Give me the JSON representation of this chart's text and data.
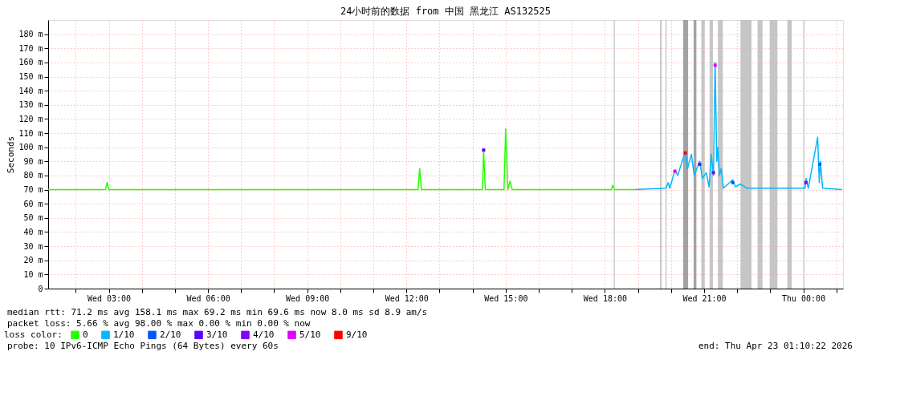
{
  "chart_data": {
    "type": "line",
    "title": "24小时前的数据 from 中国 黑龙江 AS132525",
    "ylabel": "Seconds",
    "xlim": [
      "2026-04-22T01:10",
      "2026-04-23T01:12"
    ],
    "ylim": [
      0,
      190
    ],
    "xticks": [
      {
        "value": "2026-04-22T02:00",
        "label": null
      },
      {
        "value": "2026-04-22T03:00",
        "label": "Wed 03:00"
      },
      {
        "value": "2026-04-22T04:00",
        "label": null
      },
      {
        "value": "2026-04-22T05:00",
        "label": null
      },
      {
        "value": "2026-04-22T06:00",
        "label": "Wed 06:00"
      },
      {
        "value": "2026-04-22T07:00",
        "label": null
      },
      {
        "value": "2026-04-22T08:00",
        "label": null
      },
      {
        "value": "2026-04-22T09:00",
        "label": "Wed 09:00"
      },
      {
        "value": "2026-04-22T10:00",
        "label": null
      },
      {
        "value": "2026-04-22T11:00",
        "label": null
      },
      {
        "value": "2026-04-22T12:00",
        "label": "Wed 12:00"
      },
      {
        "value": "2026-04-22T13:00",
        "label": null
      },
      {
        "value": "2026-04-22T14:00",
        "label": null
      },
      {
        "value": "2026-04-22T15:00",
        "label": "Wed 15:00"
      },
      {
        "value": "2026-04-22T16:00",
        "label": null
      },
      {
        "value": "2026-04-22T17:00",
        "label": null
      },
      {
        "value": "2026-04-22T18:00",
        "label": "Wed 18:00"
      },
      {
        "value": "2026-04-22T19:00",
        "label": null
      },
      {
        "value": "2026-04-22T20:00",
        "label": null
      },
      {
        "value": "2026-04-22T21:00",
        "label": "Wed 21:00"
      },
      {
        "value": "2026-04-22T22:00",
        "label": null
      },
      {
        "value": "2026-04-22T23:00",
        "label": null
      },
      {
        "value": "2026-04-23T00:00",
        "label": "Thu 00:00"
      },
      {
        "value": "2026-04-23T01:00",
        "label": null
      }
    ],
    "yticks": [
      0,
      {
        "value": 10,
        "label": "10 m"
      },
      {
        "value": 20,
        "label": "20 m"
      },
      {
        "value": 30,
        "label": "30 m"
      },
      {
        "value": 40,
        "label": "40 m"
      },
      {
        "value": 50,
        "label": "50 m"
      },
      {
        "value": 60,
        "label": "60 m"
      },
      {
        "value": 70,
        "label": "70 m"
      },
      {
        "value": 80,
        "label": "80 m"
      },
      {
        "value": 90,
        "label": "90 m"
      },
      {
        "value": 100,
        "label": "100 m"
      },
      {
        "value": 110,
        "label": "110 m"
      },
      {
        "value": 120,
        "label": "120 m"
      },
      {
        "value": 130,
        "label": "130 m"
      },
      {
        "value": 140,
        "label": "140 m"
      },
      {
        "value": 150,
        "label": "150 m"
      },
      {
        "value": 160,
        "label": "160 m"
      },
      {
        "value": 170,
        "label": "170 m"
      },
      {
        "value": 180,
        "label": "180 m"
      }
    ],
    "grid": true,
    "legend": "bottom",
    "legend_title": "loss color:",
    "series": [
      {
        "name": "0",
        "color": "#26ff00",
        "x": [
          "2026-04-22T01:10",
          "2026-04-22T02:54",
          "2026-04-22T02:57",
          "2026-04-22T03:00",
          "2026-04-22T12:21",
          "2026-04-22T12:24",
          "2026-04-22T12:27",
          "2026-04-22T14:18",
          "2026-04-22T14:20",
          "2026-04-22T14:23",
          "2026-04-22T14:57",
          "2026-04-22T15:00",
          "2026-04-22T15:04",
          "2026-04-22T15:08",
          "2026-04-22T15:12",
          "2026-04-22T18:12",
          "2026-04-22T18:14",
          "2026-04-22T18:18",
          "2026-04-22T18:54"
        ],
        "values": [
          70,
          70,
          75,
          70,
          70,
          85,
          70,
          70,
          98,
          70,
          70,
          113,
          70,
          76,
          70,
          70,
          73,
          70,
          70
        ]
      },
      {
        "name": "1/10",
        "color": "#00b8ff",
        "x": [
          "2026-04-22T18:54",
          "2026-04-22T19:51",
          "2026-04-22T19:55",
          "2026-04-22T19:58",
          "2026-04-22T20:07",
          "2026-04-22T20:12",
          "2026-04-22T20:26",
          "2026-04-22T20:30",
          "2026-04-22T20:37",
          "2026-04-22T20:42",
          "2026-04-22T20:52",
          "2026-04-22T20:57",
          "2026-04-22T21:04",
          "2026-04-22T21:09",
          "2026-04-22T21:13",
          "2026-04-22T21:17",
          "2026-04-22T21:20",
          "2026-04-22T21:23",
          "2026-04-22T21:25",
          "2026-04-22T21:28",
          "2026-04-22T21:31",
          "2026-04-22T21:35",
          "2026-04-22T21:52",
          "2026-04-22T21:57",
          "2026-04-22T22:06",
          "2026-04-22T22:18",
          "2026-04-23T00:03",
          "2026-04-23T00:05",
          "2026-04-23T00:09",
          "2026-04-23T00:26",
          "2026-04-23T00:29",
          "2026-04-23T00:31",
          "2026-04-23T00:35",
          "2026-04-23T01:10"
        ],
        "values": [
          70,
          71,
          75,
          71,
          84,
          80,
          97,
          85,
          95,
          80,
          90,
          78,
          82,
          72,
          95,
          80,
          160,
          90,
          100,
          80,
          85,
          71,
          77,
          72,
          74,
          71,
          71,
          78,
          71,
          107,
          75,
          90,
          71,
          70
        ]
      },
      {
        "name": "2/10",
        "color": "#0059ff",
        "type": "scatter",
        "x": [
          "2026-04-22T21:52",
          "2026-04-23T00:30"
        ],
        "values": [
          75,
          88
        ]
      },
      {
        "name": "3/10",
        "color": "#5e00ff",
        "type": "scatter",
        "x": [
          "2026-04-22T14:20",
          "2026-04-22T20:52"
        ],
        "values": [
          98,
          88
        ]
      },
      {
        "name": "4/10",
        "color": "#7e00ff",
        "type": "scatter",
        "x": [
          "2026-04-22T21:17",
          "2026-04-23T00:05"
        ],
        "values": [
          82,
          75
        ]
      },
      {
        "name": "5/10",
        "color": "#dd00ff",
        "type": "scatter",
        "x": [
          "2026-04-22T21:20",
          "2026-04-22T20:07"
        ],
        "values": [
          158,
          83
        ]
      },
      {
        "name": "9/10",
        "color": "#ff0000",
        "type": "scatter",
        "x": [
          "2026-04-22T20:26"
        ],
        "values": [
          96
        ]
      }
    ],
    "bands": [
      {
        "axis": "x",
        "from": "2026-04-22T18:16",
        "to": "2026-04-22T18:18",
        "color": "#c0c0c0"
      },
      {
        "axis": "x",
        "from": "2026-04-22T19:40",
        "to": "2026-04-22T19:43",
        "color": "#c0c0c0"
      },
      {
        "axis": "x",
        "from": "2026-04-22T19:50",
        "to": "2026-04-22T19:52",
        "color": "#c0c0c0"
      },
      {
        "axis": "x",
        "from": "2026-04-22T20:22",
        "to": "2026-04-22T20:31",
        "color": "#999999"
      },
      {
        "axis": "x",
        "from": "2026-04-22T20:41",
        "to": "2026-04-22T20:46",
        "color": "#999999"
      },
      {
        "axis": "x",
        "from": "2026-04-22T20:55",
        "to": "2026-04-22T21:01",
        "color": "#c0c0c0"
      },
      {
        "axis": "x",
        "from": "2026-04-22T21:10",
        "to": "2026-04-22T21:16",
        "color": "#c0c0c0"
      },
      {
        "axis": "x",
        "from": "2026-04-22T21:25",
        "to": "2026-04-22T21:34",
        "color": "#c0c0c0"
      },
      {
        "axis": "x",
        "from": "2026-04-22T22:06",
        "to": "2026-04-22T22:26",
        "color": "#c0c0c0"
      },
      {
        "axis": "x",
        "from": "2026-04-22T22:37",
        "to": "2026-04-22T22:46",
        "color": "#c0c0c0"
      },
      {
        "axis": "x",
        "from": "2026-04-22T22:59",
        "to": "2026-04-22T23:13",
        "color": "#c0c0c0"
      },
      {
        "axis": "x",
        "from": "2026-04-22T23:31",
        "to": "2026-04-22T23:39",
        "color": "#c0c0c0"
      },
      {
        "axis": "x",
        "from": "2026-04-23T00:00",
        "to": "2026-04-23T00:02",
        "color": "#c0c0c0"
      }
    ],
    "annotations": [
      "median rtt:  71.2 ms avg  158.1 ms max  69.2 ms min  69.6 ms now  8.0 ms sd  8.9   am/s",
      "packet loss: 5.66 % avg  98.00 % max  0.00 % min  0.00 % now",
      "probe:       10 IPv6-ICMP Echo Pings (64 Bytes) every 60s",
      "end: Thu Apr 23 01:10:22 2026"
    ]
  }
}
